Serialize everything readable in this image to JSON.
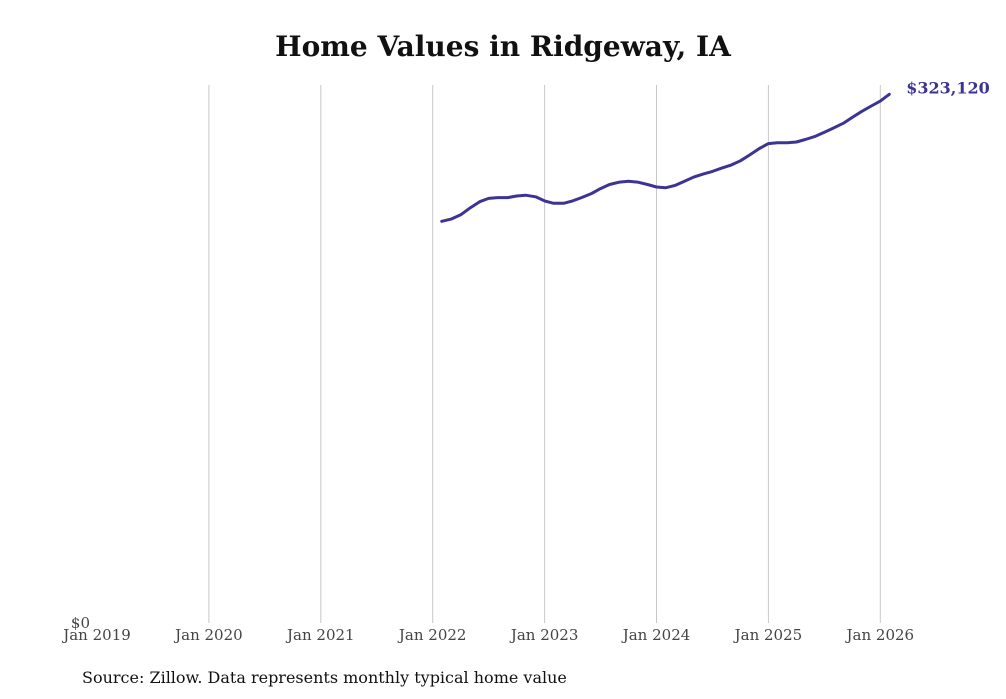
{
  "chart_data": {
    "type": "line",
    "title": "Home Values in Ridgeway, IA",
    "source": "Source: Zillow. Data represents monthly typical home value",
    "xlabel": "",
    "ylabel": "",
    "y_zero_label": "$0",
    "end_label": "$323,120",
    "grid": "vertical",
    "x_ticks": [
      "Jan 2019",
      "Jan 2020",
      "Jan 2021",
      "Jan 2022",
      "Jan 2023",
      "Jan 2024",
      "Jan 2025",
      "Jan 2026"
    ],
    "x_tick_years": [
      2019,
      2020,
      2021,
      2022,
      2023,
      2024,
      2025,
      2026
    ],
    "xlim": [
      2019,
      2026.5
    ],
    "ylim": [
      0,
      327000
    ],
    "line_color": "#3b3494",
    "series": [
      {
        "name": "Typical home value",
        "x": [
          2022.08,
          2022.17,
          2022.25,
          2022.33,
          2022.42,
          2022.5,
          2022.58,
          2022.67,
          2022.75,
          2022.83,
          2022.92,
          2023.0,
          2023.08,
          2023.17,
          2023.25,
          2023.33,
          2023.42,
          2023.5,
          2023.58,
          2023.67,
          2023.75,
          2023.83,
          2023.92,
          2024.0,
          2024.08,
          2024.17,
          2024.25,
          2024.33,
          2024.42,
          2024.5,
          2024.58,
          2024.67,
          2024.75,
          2024.83,
          2024.92,
          2025.0,
          2025.08,
          2025.17,
          2025.25,
          2025.33,
          2025.42,
          2025.5,
          2025.58,
          2025.67,
          2025.75,
          2025.83,
          2025.92,
          2026.0,
          2026.08
        ],
        "values": [
          245500,
          247000,
          249500,
          253500,
          257500,
          259500,
          260000,
          260000,
          261000,
          261500,
          260500,
          258000,
          256500,
          256500,
          258000,
          260000,
          262500,
          265500,
          268000,
          269500,
          270000,
          269500,
          268000,
          266500,
          266000,
          267500,
          270000,
          272500,
          274500,
          276000,
          278000,
          280000,
          282500,
          286000,
          290000,
          293000,
          293500,
          293500,
          294000,
          295500,
          297500,
          300000,
          302500,
          305500,
          309000,
          312500,
          316000,
          319000,
          323120
        ]
      }
    ]
  }
}
